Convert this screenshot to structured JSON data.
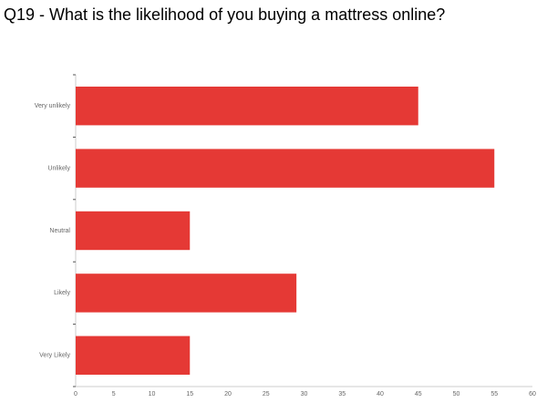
{
  "chart_data": {
    "type": "bar",
    "orientation": "horizontal",
    "title": "Q19 - What is the likelihood of you buying a mattress online?",
    "categories": [
      "Very unlikely",
      "Unlikely",
      "Neutral",
      "Likely",
      "Very Likely"
    ],
    "values": [
      45,
      55,
      15,
      29,
      15
    ],
    "color": "#e53935",
    "xlim": [
      0,
      60
    ],
    "xticks": [
      0,
      5,
      10,
      15,
      20,
      25,
      30,
      35,
      40,
      45,
      50,
      55,
      60
    ],
    "grid": false
  }
}
